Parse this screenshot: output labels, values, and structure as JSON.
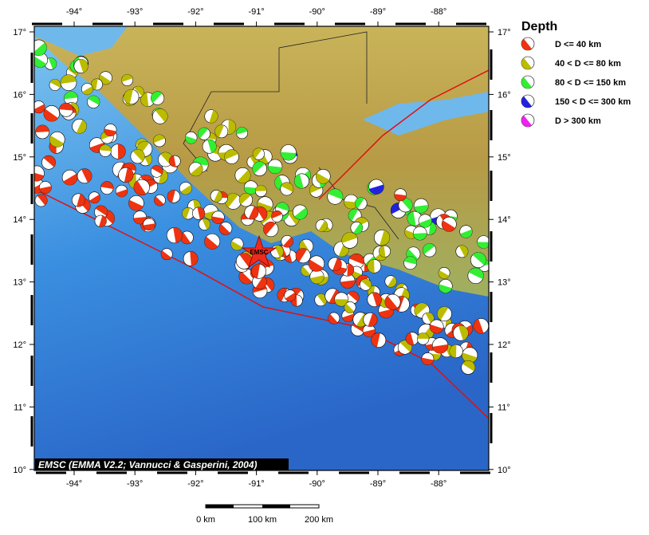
{
  "map": {
    "lon_ticks": [
      {
        "value": -94,
        "label": "-94°"
      },
      {
        "value": -93,
        "label": "-93°"
      },
      {
        "value": -92,
        "label": "-92°"
      },
      {
        "value": -91,
        "label": "-91°"
      },
      {
        "value": -90,
        "label": "-90°"
      },
      {
        "value": -89,
        "label": "-89°"
      },
      {
        "value": -88,
        "label": "-88°"
      }
    ],
    "lat_ticks": [
      {
        "value": 17,
        "label": "17°"
      },
      {
        "value": 16,
        "label": "16°"
      },
      {
        "value": 15,
        "label": "15°"
      },
      {
        "value": 14,
        "label": "14°"
      },
      {
        "value": 13,
        "label": "13°"
      },
      {
        "value": 12,
        "label": "12°"
      },
      {
        "value": 11,
        "label": "11°"
      },
      {
        "value": 10,
        "label": "10°"
      }
    ],
    "star_label": "EMSC",
    "credit": "EMSC (EMMA V2.2; Vannucci & Gasperini, 2004)",
    "scale_labels": [
      "0 km",
      "100 km",
      "200 km"
    ]
  },
  "legend": {
    "title": "Depth",
    "entries": [
      {
        "label": "D <= 40 km",
        "color": "#ee3311"
      },
      {
        "label": "40 < D <= 80 km",
        "color": "#bbbb00"
      },
      {
        "label": "80 < D <= 150 km",
        "color": "#33ee33"
      },
      {
        "label": "150 < D <= 300 km",
        "color": "#2222dd"
      },
      {
        "label": "D > 300 km",
        "color": "#ee22ee"
      }
    ]
  }
}
